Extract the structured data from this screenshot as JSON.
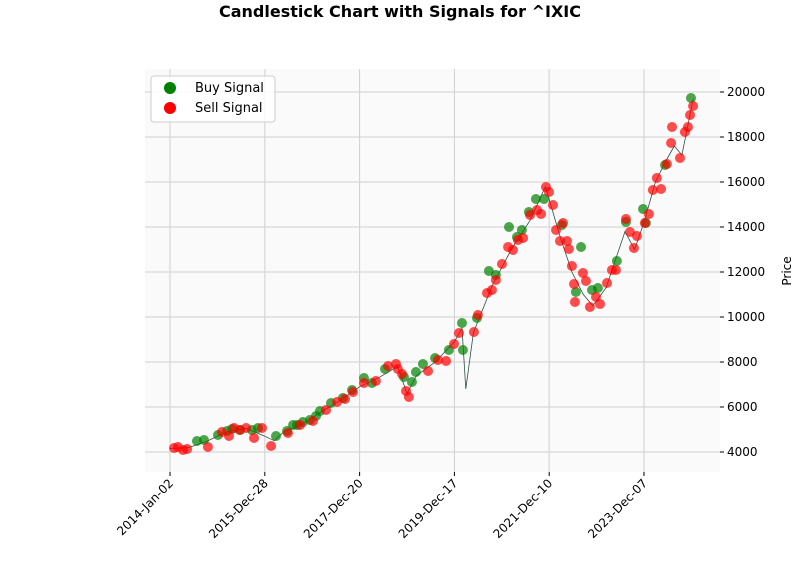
{
  "chart_data": {
    "type": "candlestick-signals",
    "title": "Candlestick Chart with Signals for ^IXIC",
    "ylabel": "Price",
    "xlim": [
      -132,
      2901
    ],
    "ylim": [
      3111,
      21022
    ],
    "xticks": [
      {
        "value": 0,
        "label": "2014-Jan-02"
      },
      {
        "value": 500,
        "label": "2015-Dec-28"
      },
      {
        "value": 1000,
        "label": "2017-Dec-20"
      },
      {
        "value": 1500,
        "label": "2019-Dec-17"
      },
      {
        "value": 2000,
        "label": "2021-Dec-10"
      },
      {
        "value": 2500,
        "label": "2023-Dec-07"
      }
    ],
    "yticks": [
      4000,
      6000,
      8000,
      10000,
      12000,
      14000,
      16000,
      18000,
      20000
    ],
    "grid": true,
    "legend": "upper left",
    "price": {
      "color": "#2f4f3f",
      "x": [
        0,
        100,
        200,
        300,
        400,
        500,
        550,
        600,
        700,
        800,
        900,
        1000,
        1100,
        1200,
        1250,
        1300,
        1400,
        1500,
        1540,
        1560,
        1600,
        1700,
        1800,
        1900,
        1980,
        2060,
        2120,
        2180,
        2230,
        2300,
        2400,
        2450,
        2500,
        2560,
        2620,
        2660,
        2700,
        2760
      ],
      "values": [
        4150,
        4200,
        4500,
        4900,
        5050,
        4700,
        4500,
        4900,
        5250,
        5800,
        6300,
        6900,
        7300,
        7800,
        6600,
        7400,
        8000,
        8900,
        9500,
        6800,
        9300,
        11400,
        13000,
        14300,
        15800,
        13500,
        12000,
        11000,
        10500,
        11300,
        13800,
        13000,
        14200,
        16000,
        17000,
        17600,
        17200,
        19700
      ]
    },
    "series": [
      {
        "name": "Buy Signal",
        "color": "#008000",
        "x": [
          142,
          179,
          253,
          301,
          327,
          369,
          432,
          464,
          559,
          617,
          649,
          670,
          701,
          738,
          770,
          791,
          849,
          912,
          960,
          1023,
          1065,
          1134,
          1234,
          1276,
          1297,
          1334,
          1398,
          1471,
          1540,
          1545,
          1619,
          1682,
          1719,
          1788,
          1830,
          1856,
          1893,
          1930,
          1973,
          2067,
          2141,
          2168,
          2226,
          2257,
          2357,
          2405,
          2495,
          2510,
          2611,
          2748
        ],
        "values": [
          4489,
          4533,
          4756,
          4933,
          5022,
          4978,
          4978,
          5067,
          4711,
          4933,
          5200,
          5200,
          5333,
          5422,
          5600,
          5822,
          6178,
          6400,
          6756,
          7289,
          7067,
          7689,
          7333,
          7111,
          7556,
          7911,
          8178,
          8533,
          9733,
          8533,
          9956,
          12044,
          11867,
          14000,
          13556,
          13867,
          14667,
          15244,
          15244,
          14089,
          11111,
          13111,
          11200,
          11289,
          12489,
          14222,
          14800,
          14178,
          16756,
          19733
        ]
      },
      {
        "name": "Sell Signal",
        "color": "#ff0000",
        "x": [
          21,
          42,
          69,
          90,
          200,
          274,
          311,
          338,
          369,
          401,
          443,
          485,
          533,
          622,
          686,
          754,
          823,
          881,
          923,
          965,
          1023,
          1086,
          1150,
          1192,
          1202,
          1224,
          1245,
          1260,
          1361,
          1413,
          1456,
          1498,
          1524,
          1603,
          1624,
          1672,
          1698,
          1719,
          1751,
          1783,
          1809,
          1835,
          1862,
          1899,
          1936,
          1957,
          1983,
          1999,
          2020,
          2036,
          2057,
          2073,
          2094,
          2104,
          2120,
          2131,
          2136,
          2178,
          2194,
          2215,
          2247,
          2268,
          2305,
          2331,
          2352,
          2405,
          2426,
          2447,
          2463,
          2505,
          2526,
          2547,
          2568,
          2590,
          2621,
          2643,
          2648,
          2690,
          2716,
          2732,
          2743,
          2759
        ],
        "values": [
          4178,
          4222,
          4089,
          4133,
          4222,
          4889,
          4711,
          5067,
          4978,
          5067,
          4622,
          5067,
          4267,
          4844,
          5200,
          5378,
          5867,
          6222,
          6356,
          6667,
          7067,
          7156,
          7822,
          7911,
          7689,
          7467,
          6711,
          6444,
          7600,
          8089,
          8044,
          8800,
          9289,
          9333,
          10089,
          11067,
          11200,
          11644,
          12356,
          13111,
          12978,
          13422,
          13511,
          14533,
          14756,
          14578,
          15778,
          15556,
          14978,
          13867,
          13378,
          14178,
          13378,
          13022,
          12267,
          11467,
          10667,
          11956,
          11600,
          10444,
          10889,
          10578,
          11511,
          12089,
          12089,
          14356,
          13778,
          13067,
          13600,
          14178,
          14578,
          15644,
          16178,
          15689,
          16800,
          17733,
          18444,
          17067,
          18222,
          18444,
          18978,
          19378
        ]
      }
    ]
  }
}
